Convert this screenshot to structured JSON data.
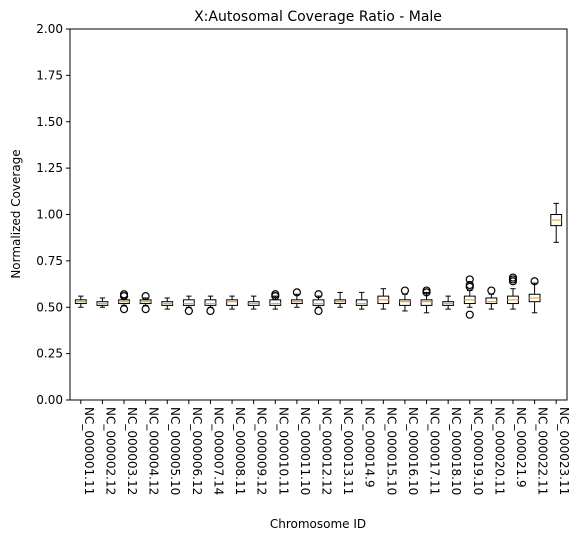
{
  "chart_data": {
    "type": "boxplot",
    "title": "X:Autosomal Coverage Ratio - Male",
    "xlabel": "Chromosome ID",
    "ylabel": "Normalized Coverage",
    "ylim": [
      0,
      2
    ],
    "yticks": [
      "0.00",
      "0.25",
      "0.50",
      "0.75",
      "1.00",
      "1.25",
      "1.50",
      "1.75",
      "2.00"
    ],
    "grid": false,
    "colors": {
      "box_edge": "#000000",
      "median": "#f5a623",
      "flier": "#000000",
      "axis": "#000000"
    },
    "categories": [
      "NC_000001.11",
      "NC_000002.12",
      "NC_000003.12",
      "NC_000004.12",
      "NC_000005.10",
      "NC_000006.12",
      "NC_000007.14",
      "NC_000008.11",
      "NC_000009.12",
      "NC_000010.11",
      "NC_000011.10",
      "NC_000012.12",
      "NC_000013.11",
      "NC_000014.9",
      "NC_000015.10",
      "NC_000016.10",
      "NC_000017.11",
      "NC_000018.10",
      "NC_000019.10",
      "NC_000020.11",
      "NC_000021.9",
      "NC_000022.11",
      "NC_000023.11"
    ],
    "boxes": [
      {
        "whislo": 0.5,
        "q1": 0.52,
        "med": 0.53,
        "q3": 0.54,
        "whishi": 0.56,
        "fliers": []
      },
      {
        "whislo": 0.5,
        "q1": 0.51,
        "med": 0.52,
        "q3": 0.53,
        "whishi": 0.55,
        "fliers": []
      },
      {
        "whislo": 0.51,
        "q1": 0.52,
        "med": 0.53,
        "q3": 0.54,
        "whishi": 0.55,
        "fliers": [
          0.49,
          0.56,
          0.57
        ]
      },
      {
        "whislo": 0.51,
        "q1": 0.52,
        "med": 0.53,
        "q3": 0.54,
        "whishi": 0.55,
        "fliers": [
          0.49,
          0.56
        ]
      },
      {
        "whislo": 0.49,
        "q1": 0.51,
        "med": 0.52,
        "q3": 0.53,
        "whishi": 0.55,
        "fliers": []
      },
      {
        "whislo": 0.5,
        "q1": 0.51,
        "med": 0.52,
        "q3": 0.54,
        "whishi": 0.56,
        "fliers": [
          0.48
        ]
      },
      {
        "whislo": 0.5,
        "q1": 0.51,
        "med": 0.52,
        "q3": 0.54,
        "whishi": 0.56,
        "fliers": [
          0.48
        ]
      },
      {
        "whislo": 0.49,
        "q1": 0.51,
        "med": 0.53,
        "q3": 0.54,
        "whishi": 0.56,
        "fliers": []
      },
      {
        "whislo": 0.49,
        "q1": 0.51,
        "med": 0.52,
        "q3": 0.53,
        "whishi": 0.56,
        "fliers": []
      },
      {
        "whislo": 0.49,
        "q1": 0.51,
        "med": 0.52,
        "q3": 0.54,
        "whishi": 0.56,
        "fliers": [
          0.56,
          0.57
        ]
      },
      {
        "whislo": 0.5,
        "q1": 0.52,
        "med": 0.53,
        "q3": 0.54,
        "whishi": 0.57,
        "fliers": [
          0.58
        ]
      },
      {
        "whislo": 0.5,
        "q1": 0.51,
        "med": 0.52,
        "q3": 0.54,
        "whishi": 0.56,
        "fliers": [
          0.48,
          0.57
        ]
      },
      {
        "whislo": 0.5,
        "q1": 0.52,
        "med": 0.53,
        "q3": 0.54,
        "whishi": 0.58,
        "fliers": []
      },
      {
        "whislo": 0.49,
        "q1": 0.51,
        "med": 0.52,
        "q3": 0.54,
        "whishi": 0.58,
        "fliers": []
      },
      {
        "whislo": 0.49,
        "q1": 0.52,
        "med": 0.54,
        "q3": 0.56,
        "whishi": 0.6,
        "fliers": []
      },
      {
        "whislo": 0.48,
        "q1": 0.51,
        "med": 0.53,
        "q3": 0.54,
        "whishi": 0.57,
        "fliers": [
          0.59
        ]
      },
      {
        "whislo": 0.47,
        "q1": 0.51,
        "med": 0.53,
        "q3": 0.54,
        "whishi": 0.58,
        "fliers": [
          0.58,
          0.59
        ]
      },
      {
        "whislo": 0.49,
        "q1": 0.51,
        "med": 0.52,
        "q3": 0.53,
        "whishi": 0.56,
        "fliers": []
      },
      {
        "whislo": 0.5,
        "q1": 0.52,
        "med": 0.54,
        "q3": 0.56,
        "whishi": 0.59,
        "fliers": [
          0.46,
          0.61,
          0.62,
          0.65
        ]
      },
      {
        "whislo": 0.49,
        "q1": 0.52,
        "med": 0.53,
        "q3": 0.55,
        "whishi": 0.57,
        "fliers": [
          0.59
        ]
      },
      {
        "whislo": 0.49,
        "q1": 0.52,
        "med": 0.54,
        "q3": 0.56,
        "whishi": 0.6,
        "fliers": [
          0.64,
          0.65,
          0.66
        ]
      },
      {
        "whislo": 0.47,
        "q1": 0.53,
        "med": 0.55,
        "q3": 0.57,
        "whishi": 0.63,
        "fliers": [
          0.64
        ]
      },
      {
        "whislo": 0.85,
        "q1": 0.94,
        "med": 0.97,
        "q3": 1.0,
        "whishi": 1.06,
        "fliers": []
      }
    ]
  }
}
